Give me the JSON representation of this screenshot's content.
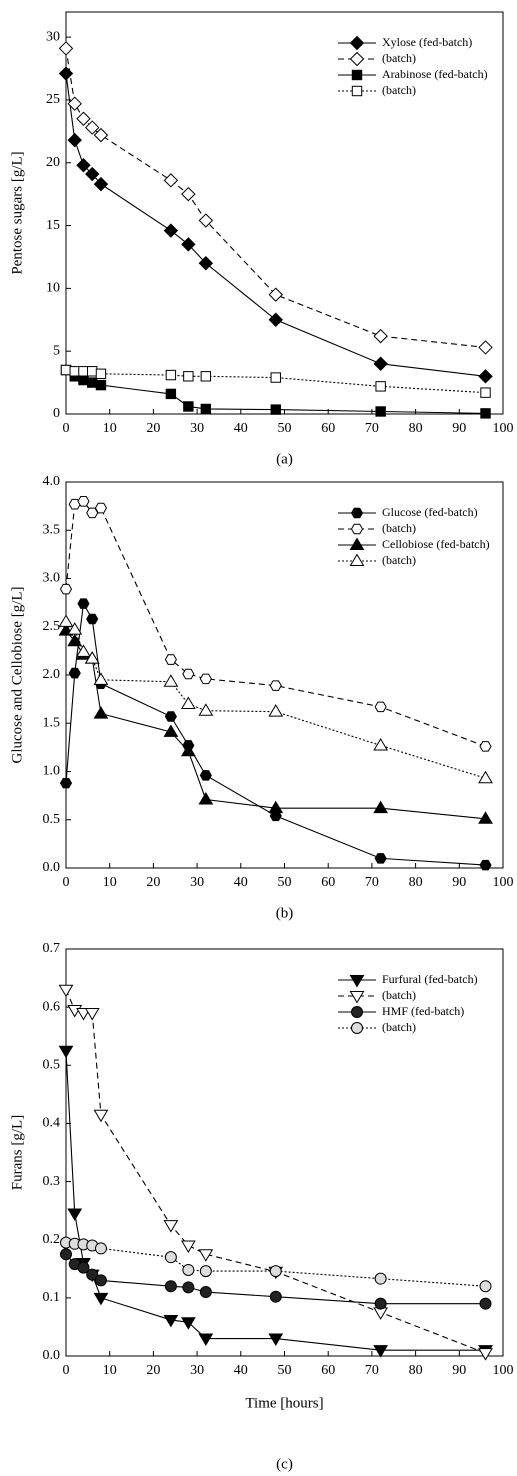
{
  "chart_data": [
    {
      "type": "line",
      "subtitle": "(a)",
      "ylabel": "Pentose sugars [g/L]",
      "x": [
        0,
        2,
        4,
        6,
        8,
        24,
        28,
        32,
        48,
        72,
        96
      ],
      "xlim": [
        0,
        100
      ],
      "xticks": [
        0,
        10,
        20,
        30,
        40,
        50,
        60,
        70,
        80,
        90,
        100
      ],
      "ylim": [
        0,
        32
      ],
      "yticks": [
        0,
        5,
        10,
        15,
        20,
        25,
        30
      ],
      "legend": "upper right",
      "series": [
        {
          "name": "Xylose (fed-batch)",
          "color": "#000000",
          "marker": "diamond",
          "fill": "#000000",
          "dash": "solid",
          "values": [
            27.1,
            21.8,
            19.8,
            19.1,
            18.3,
            14.6,
            13.5,
            12.0,
            7.5,
            4.0,
            3.0
          ]
        },
        {
          "name": "(batch)",
          "color": "#000000",
          "marker": "diamond",
          "fill": "#ffffff",
          "dash": "dashed",
          "values": [
            29.1,
            24.7,
            23.5,
            22.8,
            22.2,
            18.6,
            17.5,
            15.4,
            9.5,
            6.2,
            5.3
          ]
        },
        {
          "name": "Arabinose (fed-batch)",
          "color": "#000000",
          "marker": "square",
          "fill": "#000000",
          "dash": "solid",
          "values": [
            3.5,
            3.0,
            2.7,
            2.5,
            2.3,
            1.6,
            0.6,
            0.4,
            0.35,
            0.2,
            0.05
          ]
        },
        {
          "name": "(batch)",
          "color": "#000000",
          "marker": "square",
          "fill": "#ffffff",
          "dash": "dotted",
          "values": [
            3.5,
            3.4,
            3.4,
            3.4,
            3.2,
            3.1,
            3.0,
            3.0,
            2.9,
            2.2,
            1.7
          ]
        }
      ]
    },
    {
      "type": "line",
      "subtitle": "(b)",
      "ylabel": "Glucose and Cellobiose [g/L]",
      "x": [
        0,
        2,
        4,
        6,
        8,
        24,
        28,
        32,
        48,
        72,
        96
      ],
      "xlim": [
        0,
        100
      ],
      "xticks": [
        0,
        10,
        20,
        30,
        40,
        50,
        60,
        70,
        80,
        90,
        100
      ],
      "ylim": [
        0,
        4.0
      ],
      "yticks": [
        {
          "value": 0,
          "label": "0.0"
        },
        0.5,
        {
          "value": 1,
          "label": "1.0"
        },
        1.5,
        {
          "value": 2,
          "label": "2.0"
        },
        2.5,
        {
          "value": 3,
          "label": "3.0"
        },
        3.5,
        {
          "value": 4,
          "label": "4.0"
        }
      ],
      "legend": "upper right",
      "series": [
        {
          "name": "Glucose (fed-batch)",
          "color": "#000000",
          "marker": "hexagon",
          "fill": "#000000",
          "dash": "solid",
          "values": [
            0.88,
            2.02,
            2.74,
            2.58,
            1.91,
            1.57,
            1.27,
            0.96,
            0.54,
            0.1,
            0.03
          ]
        },
        {
          "name": "(batch)",
          "color": "#000000",
          "marker": "hexagon",
          "fill": "#ffffff",
          "dash": "dashed",
          "values": [
            2.89,
            3.77,
            3.8,
            3.68,
            3.73,
            2.16,
            2.01,
            1.96,
            1.89,
            1.67,
            1.26
          ]
        },
        {
          "name": "Cellobiose (fed-batch)",
          "color": "#000000",
          "marker": "triangle-up",
          "fill": "#000000",
          "dash": "solid",
          "values": [
            2.46,
            2.35,
            2.21,
            2.17,
            1.6,
            1.41,
            1.21,
            0.71,
            0.62,
            0.62,
            0.51
          ]
        },
        {
          "name": "(batch)",
          "color": "#000000",
          "marker": "triangle-up",
          "fill": "#ffffff",
          "dash": "dotted",
          "values": [
            2.55,
            2.47,
            2.24,
            2.17,
            1.95,
            1.93,
            1.7,
            1.63,
            1.62,
            1.27,
            0.93
          ]
        }
      ]
    },
    {
      "type": "line",
      "subtitle": "(c)",
      "ylabel": "Furans [g/L]",
      "xlabel": "Time [hours]",
      "x": [
        0,
        2,
        4,
        6,
        8,
        24,
        28,
        32,
        48,
        72,
        96
      ],
      "xlim": [
        0,
        100
      ],
      "xticks": [
        0,
        10,
        20,
        30,
        40,
        50,
        60,
        70,
        80,
        90,
        100
      ],
      "ylim": [
        0,
        0.7
      ],
      "yticks": [
        {
          "value": 0,
          "label": "0.0"
        },
        0.1,
        0.2,
        0.3,
        0.4,
        0.5,
        0.6,
        0.7
      ],
      "legend": "upper right",
      "series": [
        {
          "name": "Furfural (fed-batch)",
          "color": "#000000",
          "marker": "triangle-down",
          "fill": "#000000",
          "dash": "solid",
          "values": [
            0.525,
            0.245,
            0.16,
            0.14,
            0.1,
            0.062,
            0.058,
            0.03,
            0.03,
            0.01,
            0.01
          ]
        },
        {
          "name": "(batch)",
          "color": "#000000",
          "marker": "triangle-down",
          "fill": "#ffffff",
          "dash": "dashed",
          "values": [
            0.63,
            0.595,
            0.59,
            0.59,
            0.415,
            0.225,
            0.19,
            0.175,
            0.145,
            0.075,
            0.005
          ]
        },
        {
          "name": "HMF (fed-batch)",
          "color": "#000000",
          "marker": "circle",
          "fill": "#222222",
          "dash": "solid",
          "values": [
            0.175,
            0.158,
            0.152,
            0.14,
            0.13,
            0.12,
            0.118,
            0.11,
            0.102,
            0.09,
            0.09
          ]
        },
        {
          "name": "(batch)",
          "color": "#000000",
          "marker": "circle",
          "fill": "#dddddd",
          "dash": "dotted",
          "values": [
            0.195,
            0.193,
            0.192,
            0.19,
            0.185,
            0.17,
            0.148,
            0.146,
            0.146,
            0.133,
            0.12
          ]
        }
      ]
    }
  ]
}
